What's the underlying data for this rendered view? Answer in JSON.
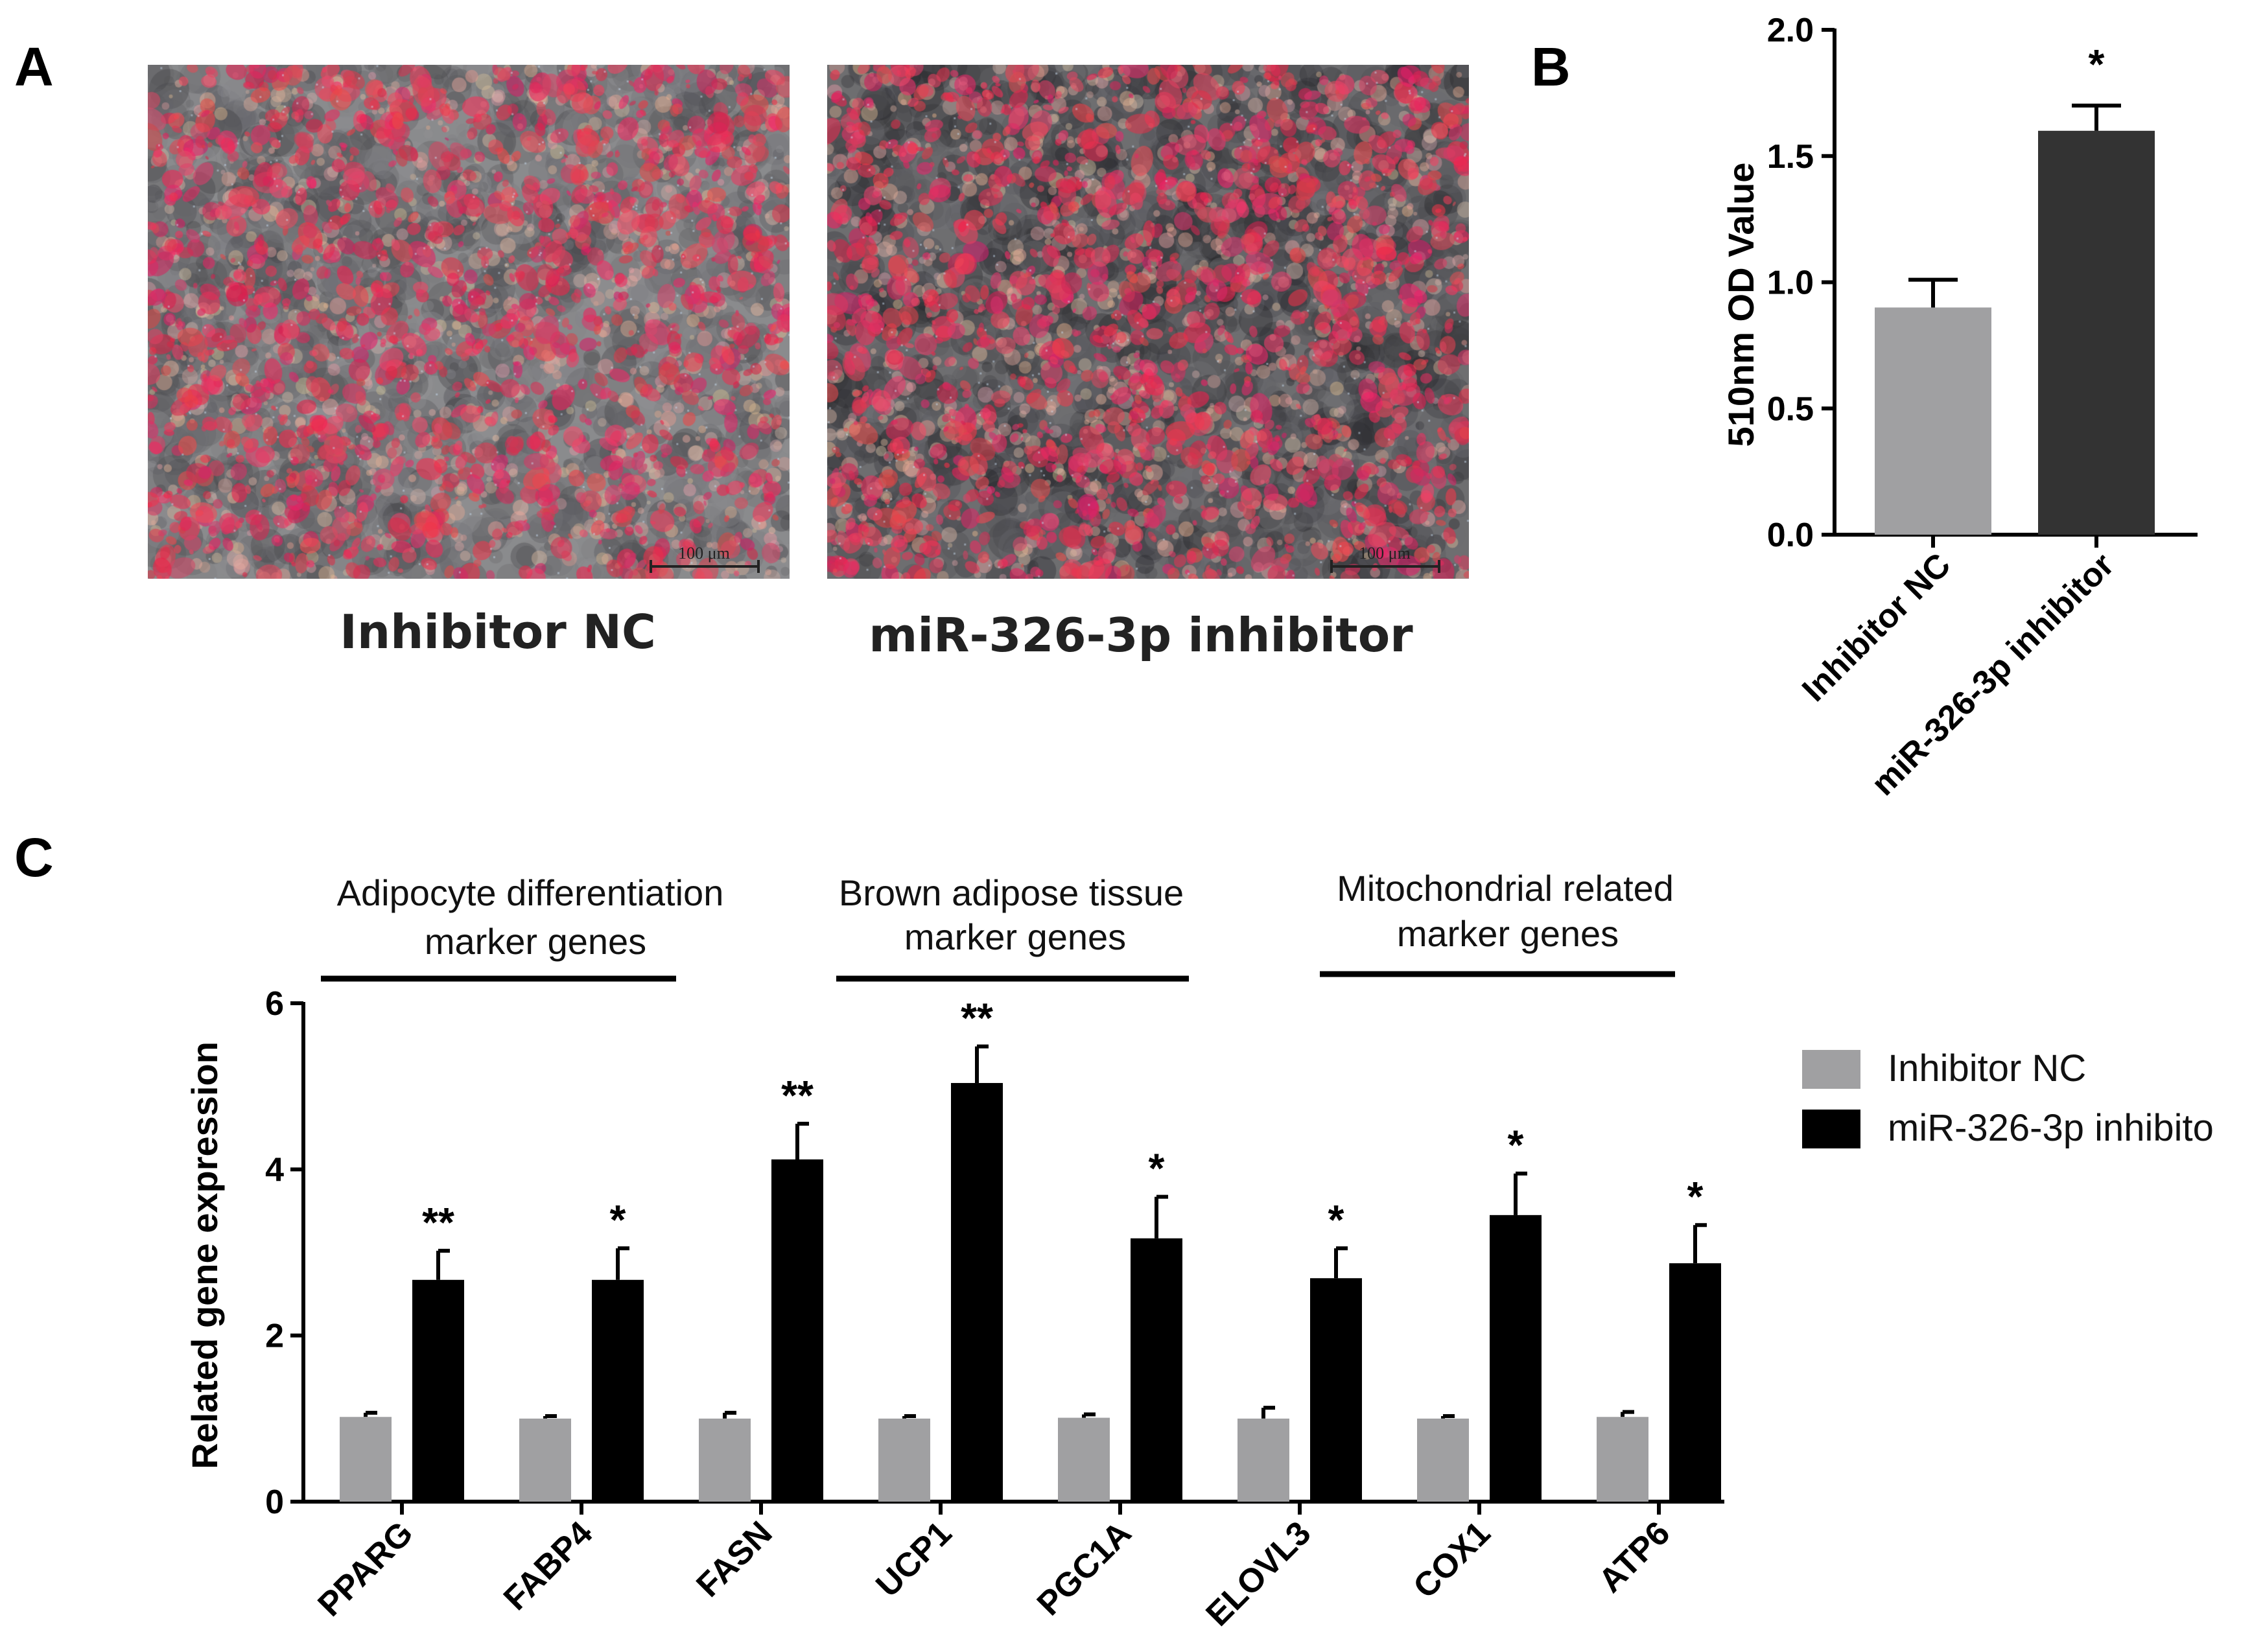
{
  "panel_a": {
    "letter": "A",
    "images": [
      {
        "caption": "Inhibitor NC",
        "scale_bar": "100 μm"
      },
      {
        "caption": "miR-326-3p inhibitor",
        "scale_bar": "100 μm"
      }
    ]
  },
  "panel_b_letter": "B",
  "panel_c_letter": "C",
  "colors": {
    "nc": "#a0a0a2",
    "inhibitor_b": "#333333",
    "inhibitor_c": "#000000"
  },
  "chart_data": [
    {
      "type": "bar",
      "panel": "B",
      "categories": [
        "Inhibitor NC",
        "miR-326-3p inhibitor"
      ],
      "values": [
        0.9,
        1.6
      ],
      "errors": [
        0.11,
        0.1
      ],
      "significance": [
        "",
        "*"
      ],
      "ylabel": "510nm OD Value",
      "ylim": [
        0,
        2.0
      ],
      "yticks": [
        "0.0",
        "0.5",
        "1.0",
        "1.5",
        "2.0"
      ],
      "grid": false,
      "legend": "none"
    },
    {
      "type": "bar",
      "panel": "C",
      "categories": [
        "PPARG",
        "FABP4",
        "FASN",
        "UCP1",
        "PGC1A",
        "ELOVL3",
        "COX1",
        "ATP6"
      ],
      "series": [
        {
          "name": "Inhibitor NC",
          "values": [
            1.02,
            1.0,
            1.0,
            1.0,
            1.01,
            1.0,
            1.0,
            1.02
          ],
          "errors": [
            0.05,
            0.03,
            0.07,
            0.03,
            0.04,
            0.13,
            0.03,
            0.06
          ]
        },
        {
          "name": "miR-326-3p inhibito",
          "values": [
            2.67,
            2.67,
            4.12,
            5.04,
            3.17,
            2.69,
            3.45,
            2.87
          ],
          "errors": [
            0.35,
            0.38,
            0.43,
            0.44,
            0.5,
            0.36,
            0.5,
            0.46
          ]
        }
      ],
      "significance": [
        "**",
        "*",
        "**",
        "**",
        "*",
        "*",
        "*",
        "*"
      ],
      "groups": [
        {
          "line1": "Adipocyte differentiation",
          "line2": "marker genes"
        },
        {
          "line1": "Brown adipose tissue",
          "line2": "marker genes"
        },
        {
          "line1": "Mitochondrial related",
          "line2": "marker genes"
        }
      ],
      "ylabel": "Related gene expression",
      "ylim": [
        0,
        6
      ],
      "yticks": [
        "0",
        "2",
        "4",
        "6"
      ],
      "grid": false,
      "legend": "right"
    }
  ]
}
